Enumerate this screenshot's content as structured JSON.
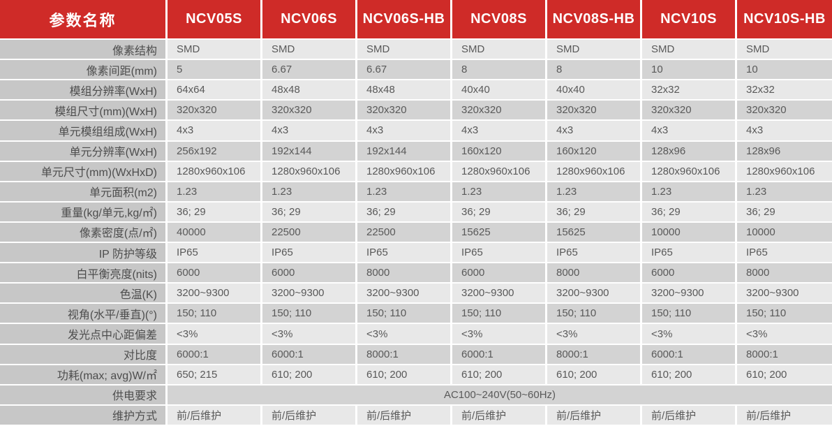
{
  "table": {
    "header": {
      "param_col": "参数名称",
      "columns": [
        "NCV05S",
        "NCV06S",
        "NCV06S-HB",
        "NCV08S",
        "NCV08S-HB",
        "NCV10S",
        "NCV10S-HB"
      ]
    },
    "rows": [
      {
        "label": "像素结构",
        "values": [
          "SMD",
          "SMD",
          "SMD",
          "SMD",
          "SMD",
          "SMD",
          "SMD"
        ]
      },
      {
        "label": "像素间距(mm)",
        "values": [
          "5",
          "6.67",
          "6.67",
          "8",
          "8",
          "10",
          "10"
        ]
      },
      {
        "label": "模组分辨率(WxH)",
        "values": [
          "64x64",
          "48x48",
          "48x48",
          "40x40",
          "40x40",
          "32x32",
          "32x32"
        ]
      },
      {
        "label": "模组尺寸(mm)(WxH)",
        "values": [
          "320x320",
          "320x320",
          "320x320",
          "320x320",
          "320x320",
          "320x320",
          "320x320"
        ]
      },
      {
        "label": "单元模组组成(WxH)",
        "values": [
          "4x3",
          "4x3",
          "4x3",
          "4x3",
          "4x3",
          "4x3",
          "4x3"
        ]
      },
      {
        "label": "单元分辨率(WxH)",
        "values": [
          "256x192",
          "192x144",
          "192x144",
          "160x120",
          "160x120",
          "128x96",
          "128x96"
        ]
      },
      {
        "label": "单元尺寸(mm)(WxHxD)",
        "values": [
          "1280x960x106",
          "1280x960x106",
          "1280x960x106",
          "1280x960x106",
          "1280x960x106",
          "1280x960x106",
          "1280x960x106"
        ]
      },
      {
        "label": "单元面积(m2)",
        "values": [
          "1.23",
          "1.23",
          "1.23",
          "1.23",
          "1.23",
          "1.23",
          "1.23"
        ]
      },
      {
        "label": "重量(kg/单元,kg/㎡)",
        "values": [
          "36; 29",
          "36; 29",
          "36; 29",
          "36; 29",
          "36; 29",
          "36; 29",
          "36; 29"
        ]
      },
      {
        "label": "像素密度(点/㎡)",
        "values": [
          "40000",
          "22500",
          "22500",
          "15625",
          "15625",
          "10000",
          "10000"
        ]
      },
      {
        "label": "IP 防护等级",
        "values": [
          "IP65",
          "IP65",
          "IP65",
          "IP65",
          "IP65",
          "IP65",
          "IP65"
        ]
      },
      {
        "label": "白平衡亮度(nits)",
        "values": [
          "6000",
          "6000",
          "8000",
          "6000",
          "8000",
          "6000",
          "8000"
        ]
      },
      {
        "label": "色温(K)",
        "values": [
          "3200~9300",
          "3200~9300",
          "3200~9300",
          "3200~9300",
          "3200~9300",
          "3200~9300",
          "3200~9300"
        ]
      },
      {
        "label": "视角(水平/垂直)(°)",
        "values": [
          "150; 110",
          "150; 110",
          "150; 110",
          "150; 110",
          "150; 110",
          "150; 110",
          "150; 110"
        ]
      },
      {
        "label": "发光点中心距偏差",
        "values": [
          "<3%",
          "<3%",
          "<3%",
          "<3%",
          "<3%",
          "<3%",
          "<3%"
        ]
      },
      {
        "label": "对比度",
        "values": [
          "6000:1",
          "6000:1",
          "8000:1",
          "6000:1",
          "8000:1",
          "6000:1",
          "8000:1"
        ]
      },
      {
        "label": "功耗(max; avg)W/㎡",
        "values": [
          "650; 215",
          "610; 200",
          "610; 200",
          "610; 200",
          "610; 200",
          "610; 200",
          "610; 200"
        ]
      },
      {
        "label": "供电要求",
        "span": "AC100~240V(50~60Hz)"
      },
      {
        "label": "维护方式",
        "values": [
          "前/后维护",
          "前/后维护",
          "前/后维护",
          "前/后维护",
          "前/后维护",
          "前/后维护",
          "前/后维护"
        ]
      }
    ],
    "colors": {
      "header_red": "#cf2b28",
      "header_text": "#ffffff",
      "label_bg": "#c7c7c7",
      "row_light": "#e8e8e8",
      "row_dark": "#d3d3d3",
      "value_text": "#595959"
    }
  }
}
